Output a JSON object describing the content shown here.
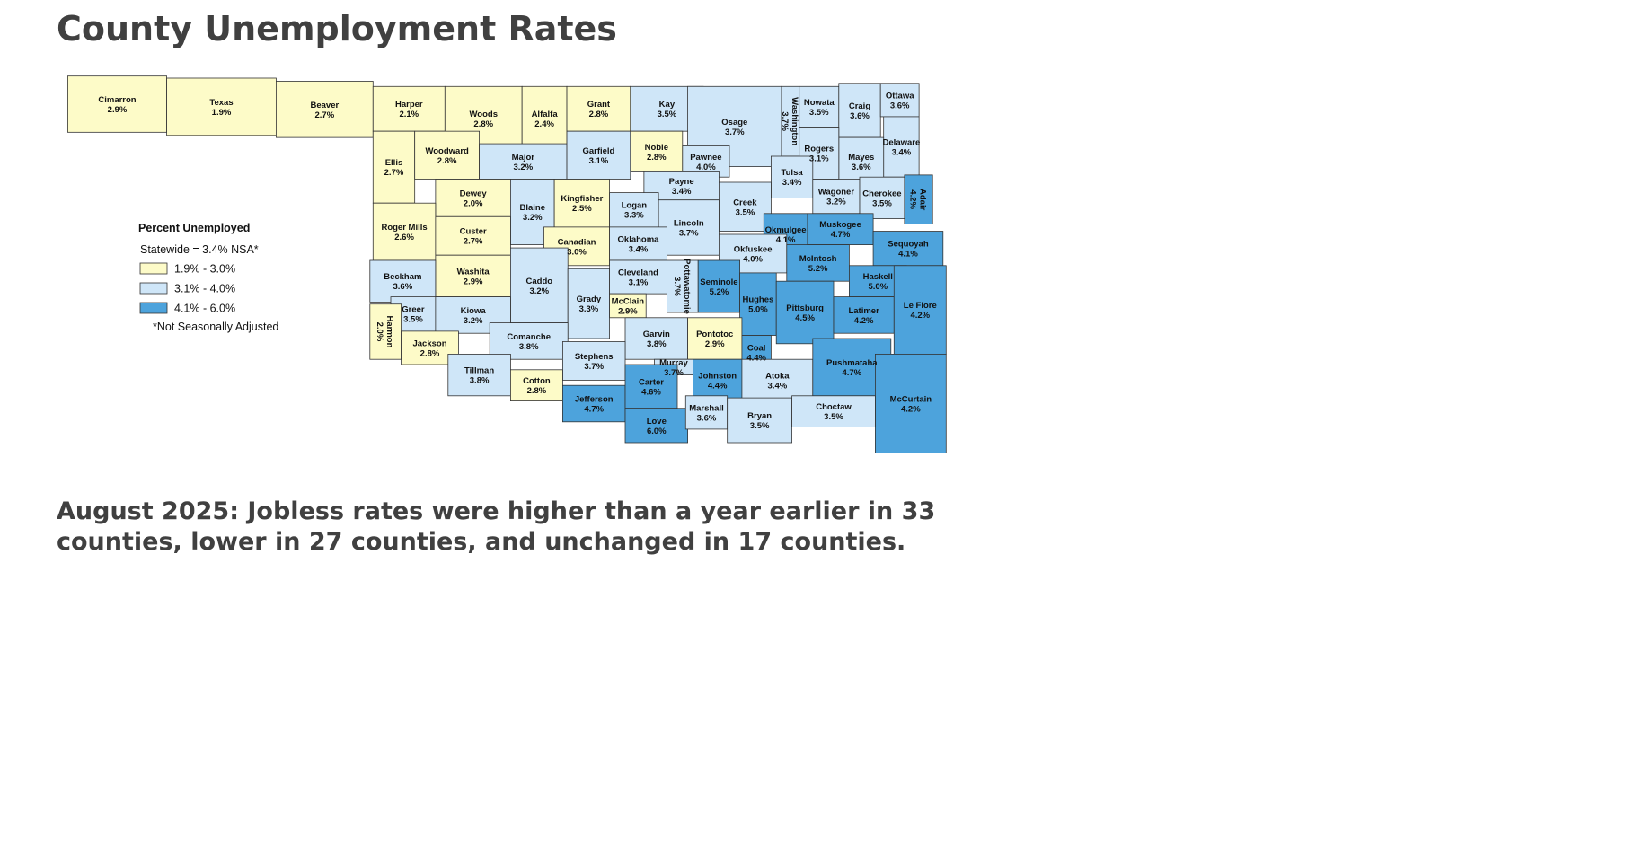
{
  "header": {
    "title": "County Unemployment Rates"
  },
  "legend": {
    "title": "Percent Unemployed",
    "statewide": "Statewide = 3.4% NSA*",
    "items": [
      {
        "label": "1.9% - 3.0%",
        "color": "#fdfbc8"
      },
      {
        "label": "3.1% - 4.0%",
        "color": "#cfe6f8"
      },
      {
        "label": "4.1% - 6.0%",
        "color": "#4da3dc"
      }
    ],
    "note": "*Not Seasonally Adjusted"
  },
  "counties": [
    {
      "name": "Cimarron",
      "rate": "2.9%",
      "color": "#fdfbc8"
    },
    {
      "name": "Texas",
      "rate": "1.9%",
      "color": "#fdfbc8"
    },
    {
      "name": "Beaver",
      "rate": "2.7%",
      "color": "#fdfbc8"
    },
    {
      "name": "Harper",
      "rate": "2.1%",
      "color": "#fdfbc8"
    },
    {
      "name": "Woods",
      "rate": "2.8%",
      "color": "#fdfbc8"
    },
    {
      "name": "Alfalfa",
      "rate": "2.4%",
      "color": "#fdfbc8"
    },
    {
      "name": "Grant",
      "rate": "2.8%",
      "color": "#fdfbc8"
    },
    {
      "name": "Kay",
      "rate": "3.5%",
      "color": "#cfe6f8"
    },
    {
      "name": "Osage",
      "rate": "3.7%",
      "color": "#cfe6f8"
    },
    {
      "name": "Washington",
      "rate": "3.7%",
      "color": "#cfe6f8"
    },
    {
      "name": "Nowata",
      "rate": "3.5%",
      "color": "#cfe6f8"
    },
    {
      "name": "Craig",
      "rate": "3.6%",
      "color": "#cfe6f8"
    },
    {
      "name": "Ottawa",
      "rate": "3.6%",
      "color": "#cfe6f8"
    },
    {
      "name": "Delaware",
      "rate": "3.4%",
      "color": "#cfe6f8"
    },
    {
      "name": "Mayes",
      "rate": "3.6%",
      "color": "#cfe6f8"
    },
    {
      "name": "Rogers",
      "rate": "3.1%",
      "color": "#cfe6f8"
    },
    {
      "name": "Tulsa",
      "rate": "3.4%",
      "color": "#cfe6f8"
    },
    {
      "name": "Wagoner",
      "rate": "3.2%",
      "color": "#cfe6f8"
    },
    {
      "name": "Cherokee",
      "rate": "3.5%",
      "color": "#cfe6f8"
    },
    {
      "name": "Adair",
      "rate": "4.2%",
      "color": "#4da3dc"
    },
    {
      "name": "Ellis",
      "rate": "2.7%",
      "color": "#fdfbc8"
    },
    {
      "name": "Woodward",
      "rate": "2.8%",
      "color": "#fdfbc8"
    },
    {
      "name": "Major",
      "rate": "3.2%",
      "color": "#cfe6f8"
    },
    {
      "name": "Garfield",
      "rate": "3.1%",
      "color": "#cfe6f8"
    },
    {
      "name": "Noble",
      "rate": "2.8%",
      "color": "#fdfbc8"
    },
    {
      "name": "Pawnee",
      "rate": "4.0%",
      "color": "#cfe6f8"
    },
    {
      "name": "Payne",
      "rate": "3.4%",
      "color": "#cfe6f8"
    },
    {
      "name": "Creek",
      "rate": "3.5%",
      "color": "#cfe6f8"
    },
    {
      "name": "Dewey",
      "rate": "2.0%",
      "color": "#fdfbc8"
    },
    {
      "name": "Blaine",
      "rate": "3.2%",
      "color": "#cfe6f8"
    },
    {
      "name": "Kingfisher",
      "rate": "2.5%",
      "color": "#fdfbc8"
    },
    {
      "name": "Logan",
      "rate": "3.3%",
      "color": "#cfe6f8"
    },
    {
      "name": "Lincoln",
      "rate": "3.7%",
      "color": "#cfe6f8"
    },
    {
      "name": "Okmulgee",
      "rate": "4.1%",
      "color": "#4da3dc"
    },
    {
      "name": "Muskogee",
      "rate": "4.7%",
      "color": "#4da3dc"
    },
    {
      "name": "Sequoyah",
      "rate": "4.1%",
      "color": "#4da3dc"
    },
    {
      "name": "Roger Mills",
      "rate": "2.6%",
      "color": "#fdfbc8"
    },
    {
      "name": "Custer",
      "rate": "2.7%",
      "color": "#fdfbc8"
    },
    {
      "name": "Canadian",
      "rate": "3.0%",
      "color": "#fdfbc8"
    },
    {
      "name": "Oklahoma",
      "rate": "3.4%",
      "color": "#cfe6f8"
    },
    {
      "name": "Okfuskee",
      "rate": "4.0%",
      "color": "#cfe6f8"
    },
    {
      "name": "McIntosh",
      "rate": "5.2%",
      "color": "#4da3dc"
    },
    {
      "name": "Haskell",
      "rate": "5.0%",
      "color": "#4da3dc"
    },
    {
      "name": "Washita",
      "rate": "2.9%",
      "color": "#fdfbc8"
    },
    {
      "name": "Beckham",
      "rate": "3.6%",
      "color": "#cfe6f8"
    },
    {
      "name": "Caddo",
      "rate": "3.2%",
      "color": "#cfe6f8"
    },
    {
      "name": "Grady",
      "rate": "3.3%",
      "color": "#cfe6f8"
    },
    {
      "name": "Cleveland",
      "rate": "3.1%",
      "color": "#cfe6f8"
    },
    {
      "name": "Pottawatomie",
      "rate": "3.7%",
      "color": "#cfe6f8"
    },
    {
      "name": "Seminole",
      "rate": "5.2%",
      "color": "#4da3dc"
    },
    {
      "name": "Hughes",
      "rate": "5.0%",
      "color": "#4da3dc"
    },
    {
      "name": "Pittsburg",
      "rate": "4.5%",
      "color": "#4da3dc"
    },
    {
      "name": "Latimer",
      "rate": "4.2%",
      "color": "#4da3dc"
    },
    {
      "name": "Le Flore",
      "rate": "4.2%",
      "color": "#4da3dc"
    },
    {
      "name": "Greer",
      "rate": "3.5%",
      "color": "#cfe6f8"
    },
    {
      "name": "Kiowa",
      "rate": "3.2%",
      "color": "#cfe6f8"
    },
    {
      "name": "McClain",
      "rate": "2.9%",
      "color": "#fdfbc8"
    },
    {
      "name": "Harmon",
      "rate": "2.0%",
      "color": "#fdfbc8"
    },
    {
      "name": "Jackson",
      "rate": "2.8%",
      "color": "#fdfbc8"
    },
    {
      "name": "Comanche",
      "rate": "3.8%",
      "color": "#cfe6f8"
    },
    {
      "name": "Garvin",
      "rate": "3.8%",
      "color": "#cfe6f8"
    },
    {
      "name": "Pontotoc",
      "rate": "2.9%",
      "color": "#fdfbc8"
    },
    {
      "name": "Coal",
      "rate": "4.4%",
      "color": "#4da3dc"
    },
    {
      "name": "Stephens",
      "rate": "3.7%",
      "color": "#cfe6f8"
    },
    {
      "name": "Murray",
      "rate": "3.7%",
      "color": "#cfe6f8"
    },
    {
      "name": "Tillman",
      "rate": "3.8%",
      "color": "#cfe6f8"
    },
    {
      "name": "Cotton",
      "rate": "2.8%",
      "color": "#fdfbc8"
    },
    {
      "name": "Johnston",
      "rate": "4.4%",
      "color": "#4da3dc"
    },
    {
      "name": "Atoka",
      "rate": "3.4%",
      "color": "#cfe6f8"
    },
    {
      "name": "Pushmataha",
      "rate": "4.7%",
      "color": "#4da3dc"
    },
    {
      "name": "McCurtain",
      "rate": "4.2%",
      "color": "#4da3dc"
    },
    {
      "name": "Jefferson",
      "rate": "4.7%",
      "color": "#4da3dc"
    },
    {
      "name": "Carter",
      "rate": "4.6%",
      "color": "#4da3dc"
    },
    {
      "name": "Love",
      "rate": "6.0%",
      "color": "#4da3dc"
    },
    {
      "name": "Marshall",
      "rate": "3.6%",
      "color": "#cfe6f8"
    },
    {
      "name": "Bryan",
      "rate": "3.5%",
      "color": "#cfe6f8"
    },
    {
      "name": "Choctaw",
      "rate": "3.5%",
      "color": "#cfe6f8"
    }
  ],
  "caption": {
    "lines": [
      "August 2025: Jobless rates were higher than a year earlier in 33",
      "counties,  lower in 27 counties, and unchanged in 17 counties."
    ]
  }
}
